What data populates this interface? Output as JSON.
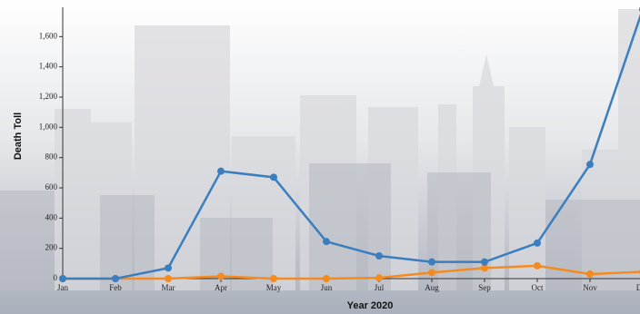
{
  "chart_data": {
    "type": "line",
    "x_label": "Year 2020",
    "y_label": "Death Toll",
    "categories": [
      "Jan",
      "Feb",
      "Mar",
      "Apr",
      "May",
      "Jun",
      "Jul",
      "Aug",
      "Sep",
      "Oct",
      "Nov",
      "Dec"
    ],
    "series": [
      {
        "color": "#3a7ebf",
        "values": [
          0,
          0,
          70,
          710,
          670,
          245,
          150,
          110,
          110,
          235,
          755,
          1780
        ]
      },
      {
        "color": "#f58a1f",
        "values": [
          0,
          0,
          0,
          15,
          0,
          0,
          5,
          40,
          70,
          85,
          30,
          45
        ]
      }
    ],
    "ylim": [
      0,
      1800
    ],
    "yticks": [
      0,
      200,
      400,
      600,
      800,
      {
        "value": 1000,
        "label": "1,000"
      },
      {
        "value": 1200,
        "label": "1,200"
      },
      {
        "value": 1400,
        "label": "1,400"
      },
      {
        "value": 1600,
        "label": "1,600"
      }
    ]
  }
}
